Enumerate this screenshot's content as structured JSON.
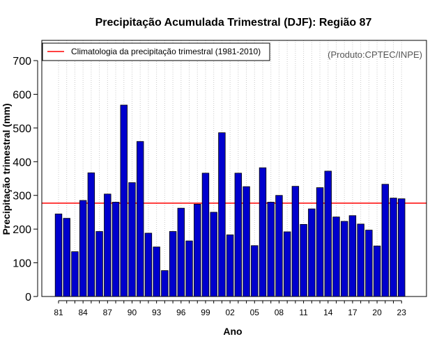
{
  "chart_data": {
    "type": "bar",
    "title": "Precipitação Acumulada Trimestral (DJF): Região 87",
    "xlabel": "Ano",
    "ylabel": "Precipitação trimestral (mm)",
    "ylim": [
      0,
      760
    ],
    "yticks": [
      0,
      100,
      200,
      300,
      400,
      500,
      600,
      700
    ],
    "categories": [
      "81",
      "82",
      "83",
      "84",
      "85",
      "86",
      "87",
      "88",
      "89",
      "90",
      "91",
      "92",
      "93",
      "94",
      "95",
      "96",
      "97",
      "98",
      "99",
      "00",
      "01",
      "02",
      "03",
      "04",
      "05",
      "06",
      "07",
      "08",
      "09",
      "10",
      "11",
      "12",
      "13",
      "14",
      "15",
      "16",
      "17",
      "18",
      "19",
      "20",
      "21",
      "22",
      "23"
    ],
    "xtick_labels": [
      "81",
      "84",
      "87",
      "90",
      "93",
      "96",
      "99",
      "02",
      "05",
      "08",
      "11",
      "14",
      "17",
      "20",
      "23"
    ],
    "values": [
      245,
      232,
      133,
      285,
      367,
      193,
      304,
      280,
      568,
      338,
      460,
      188,
      147,
      77,
      193,
      262,
      165,
      274,
      366,
      250,
      486,
      183,
      366,
      326,
      151,
      382,
      280,
      300,
      192,
      327,
      214,
      260,
      323,
      372,
      236,
      223,
      240,
      215,
      197,
      150,
      333,
      292,
      290
    ],
    "reference_line": {
      "value": 277,
      "label": "Climatologia da precipitação trimestral (1981-2010)"
    },
    "legend_position": "top-left",
    "grid": "vertical-dotted",
    "credit": "(Produto:CPTEC/INPE)",
    "colors": {
      "bar": "#0000cd",
      "bar_edge": "#000000",
      "line": "#ff0000",
      "grid": "#c8c8c8"
    }
  }
}
